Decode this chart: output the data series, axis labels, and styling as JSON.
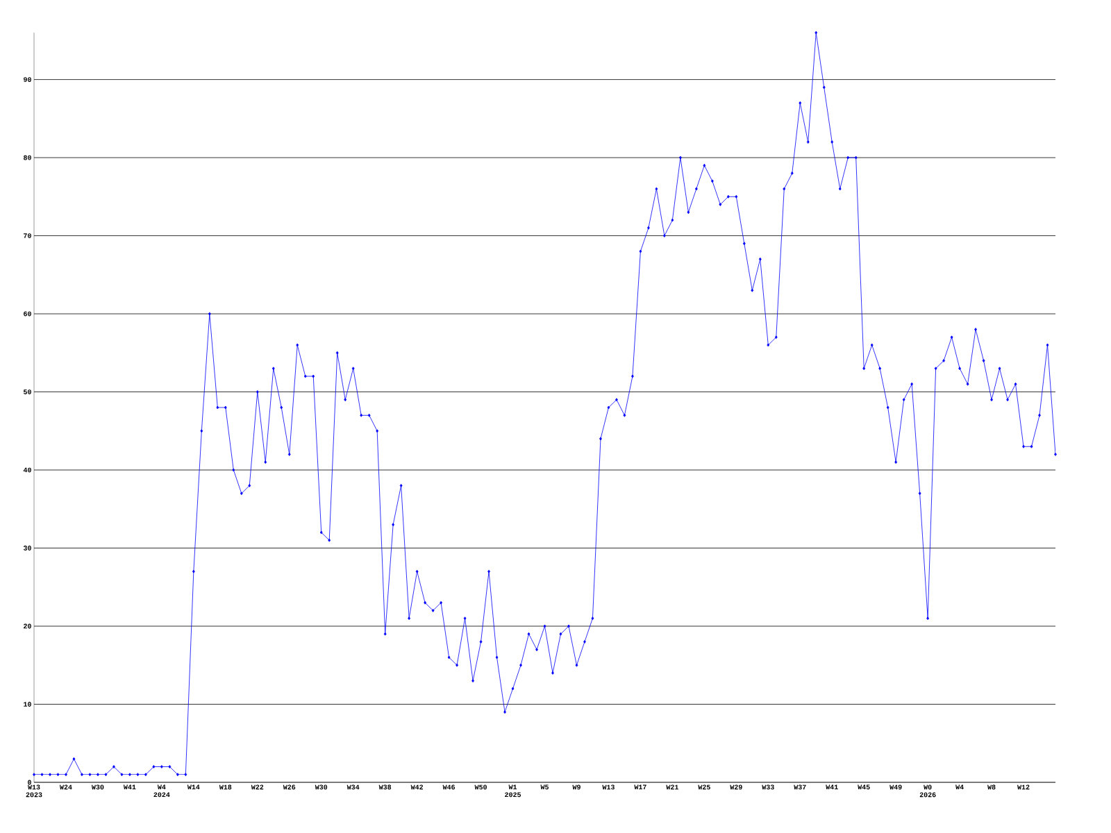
{
  "chart_data": {
    "type": "line",
    "categories": [
      "W13 2023",
      null,
      null,
      null,
      "W24",
      null,
      null,
      null,
      "W30",
      null,
      null,
      null,
      "W41",
      null,
      null,
      null,
      "W4 2024",
      null,
      null,
      null,
      "W14",
      null,
      null,
      null,
      "W18",
      null,
      null,
      null,
      "W22",
      null,
      null,
      null,
      "W26",
      null,
      null,
      null,
      "W30",
      null,
      null,
      null,
      "W34",
      null,
      null,
      null,
      "W38",
      null,
      null,
      null,
      "W42",
      null,
      null,
      null,
      "W46",
      null,
      null,
      null,
      "W50",
      null,
      null,
      null,
      "W1 2025",
      null,
      null,
      null,
      "W5",
      null,
      null,
      null,
      "W9",
      null,
      null,
      null,
      "W13",
      null,
      null,
      null,
      "W17",
      null,
      null,
      null,
      "W21",
      null,
      null,
      null,
      "W25",
      null,
      null,
      null,
      "W29",
      null,
      null,
      null,
      "W33",
      null,
      null,
      null,
      "W37",
      null,
      null,
      null,
      "W41",
      null,
      null,
      null,
      "W45",
      null,
      null,
      null,
      "W49",
      null,
      null,
      null,
      "W0 2026",
      null,
      null,
      null,
      "W4",
      null,
      null,
      null,
      "W8",
      null,
      null,
      null,
      "W12",
      null,
      null,
      null,
      null
    ],
    "series": [
      {
        "color": "#0000ff",
        "values": [
          1,
          1,
          1,
          1,
          1,
          3,
          1,
          1,
          1,
          1,
          2,
          1,
          1,
          1,
          1,
          2,
          2,
          2,
          1,
          1,
          27,
          45,
          60,
          48,
          48,
          40,
          37,
          38,
          50,
          41,
          53,
          48,
          42,
          56,
          52,
          52,
          32,
          31,
          55,
          49,
          53,
          47,
          47,
          45,
          19,
          33,
          38,
          21,
          27,
          23,
          22,
          23,
          16,
          15,
          21,
          13,
          18,
          27,
          16,
          9,
          12,
          15,
          19,
          17,
          20,
          14,
          19,
          20,
          15,
          18,
          21,
          44,
          48,
          49,
          47,
          52,
          68,
          71,
          76,
          70,
          72,
          80,
          73,
          76,
          79,
          77,
          74,
          75,
          75,
          69,
          63,
          67,
          56,
          57,
          76,
          78,
          87,
          82,
          96,
          89,
          82,
          76,
          80,
          80,
          53,
          56,
          53,
          48,
          41,
          49,
          51,
          37,
          21,
          53,
          54,
          57,
          53,
          51,
          58,
          54,
          49,
          53,
          49,
          51,
          43,
          43,
          47,
          56,
          42
        ]
      }
    ],
    "ylim": [
      0,
      96
    ],
    "yticks": [
      0,
      10,
      20,
      30,
      40,
      50,
      60,
      70,
      80,
      90
    ],
    "grid": "y",
    "marker": "diamond",
    "line_style": "solid"
  }
}
